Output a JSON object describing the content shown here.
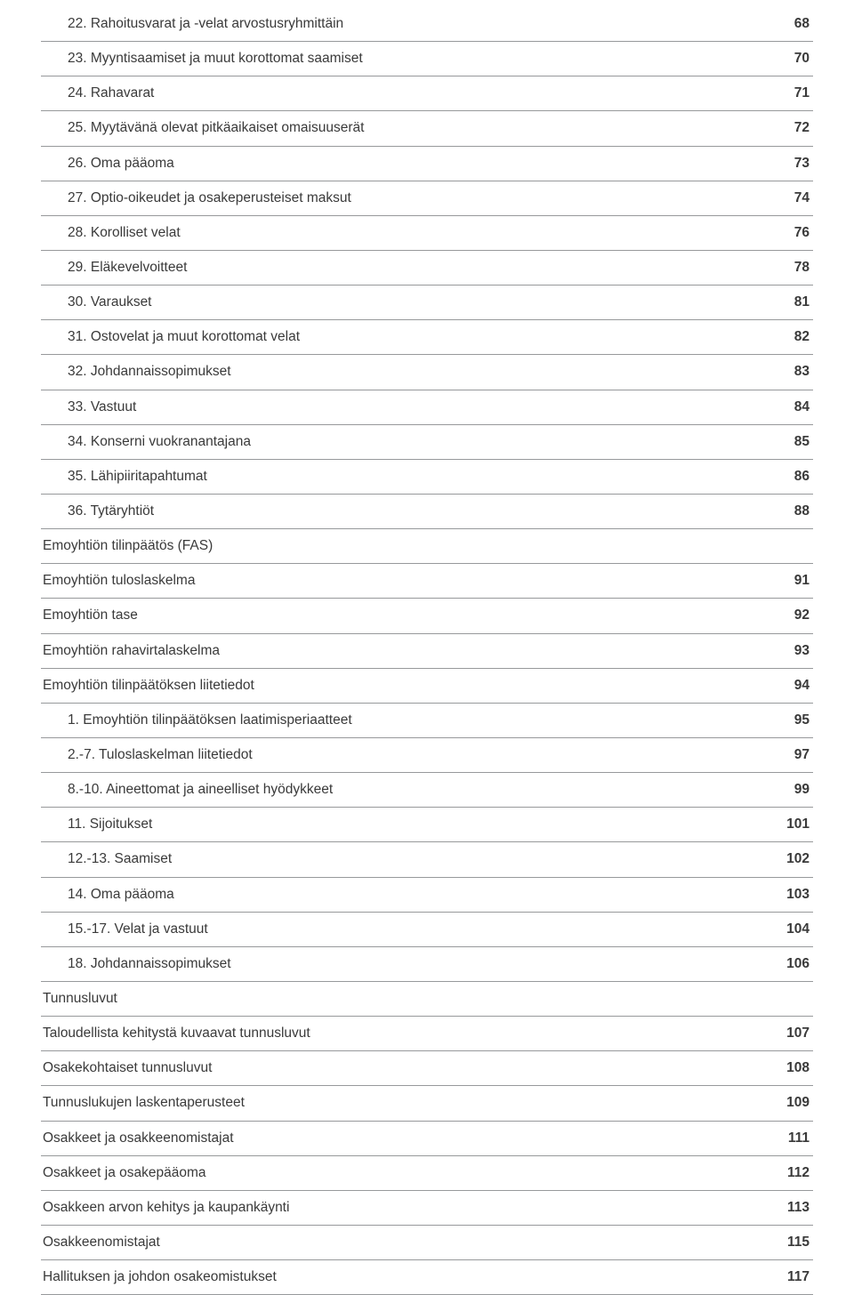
{
  "colors": {
    "text": "#3a3a3a",
    "divider": "#97999b",
    "background": "#ffffff"
  },
  "typography": {
    "font_family": "Arial",
    "font_size_pt": 12,
    "page_number_weight": "bold"
  },
  "toc": [
    {
      "title": "22. Rahoitusvarat ja -velat arvostusryhmittäin",
      "page": "68",
      "indent": 1
    },
    {
      "title": "23. Myyntisaamiset ja muut korottomat saamiset",
      "page": "70",
      "indent": 1
    },
    {
      "title": "24. Rahavarat",
      "page": "71",
      "indent": 1
    },
    {
      "title": "25. Myytävänä olevat pitkäaikaiset omaisuuserät",
      "page": "72",
      "indent": 1
    },
    {
      "title": "26. Oma pääoma",
      "page": "73",
      "indent": 1
    },
    {
      "title": "27. Optio-oikeudet ja osakeperusteiset maksut",
      "page": "74",
      "indent": 1
    },
    {
      "title": "28. Korolliset velat",
      "page": "76",
      "indent": 1
    },
    {
      "title": "29. Eläkevelvoitteet",
      "page": "78",
      "indent": 1
    },
    {
      "title": "30. Varaukset",
      "page": "81",
      "indent": 1
    },
    {
      "title": "31. Ostovelat ja muut korottomat velat",
      "page": "82",
      "indent": 1
    },
    {
      "title": "32. Johdannaissopimukset",
      "page": "83",
      "indent": 1
    },
    {
      "title": "33. Vastuut",
      "page": "84",
      "indent": 1
    },
    {
      "title": "34. Konserni vuokranantajana",
      "page": "85",
      "indent": 1
    },
    {
      "title": "35. Lähipiiritapahtumat",
      "page": "86",
      "indent": 1
    },
    {
      "title": "36. Tytäryhtiöt",
      "page": "88",
      "indent": 1
    },
    {
      "title": "Emoyhtiön tilinpäätös (FAS)",
      "page": "",
      "indent": 0,
      "header": true
    },
    {
      "title": "Emoyhtiön tuloslaskelma",
      "page": "91",
      "indent": 0
    },
    {
      "title": "Emoyhtiön tase",
      "page": "92",
      "indent": 0
    },
    {
      "title": "Emoyhtiön rahavirtalaskelma",
      "page": "93",
      "indent": 0
    },
    {
      "title": "Emoyhtiön tilinpäätöksen liitetiedot",
      "page": "94",
      "indent": 0
    },
    {
      "title": "1. Emoyhtiön tilinpäätöksen laatimisperiaatteet",
      "page": "95",
      "indent": 1
    },
    {
      "title": "2.-7. Tuloslaskelman liitetiedot",
      "page": "97",
      "indent": 1
    },
    {
      "title": "8.-10. Aineettomat ja aineelliset hyödykkeet",
      "page": "99",
      "indent": 1
    },
    {
      "title": "11. Sijoitukset",
      "page": "101",
      "indent": 1
    },
    {
      "title": "12.-13. Saamiset",
      "page": "102",
      "indent": 1
    },
    {
      "title": "14. Oma pääoma",
      "page": "103",
      "indent": 1
    },
    {
      "title": "15.-17. Velat ja vastuut",
      "page": "104",
      "indent": 1
    },
    {
      "title": "18. Johdannaissopimukset",
      "page": "106",
      "indent": 1
    },
    {
      "title": "Tunnusluvut",
      "page": "",
      "indent": 0,
      "header": true
    },
    {
      "title": "Taloudellista kehitystä kuvaavat tunnusluvut",
      "page": "107",
      "indent": 0
    },
    {
      "title": "Osakekohtaiset tunnusluvut",
      "page": "108",
      "indent": 0
    },
    {
      "title": "Tunnuslukujen laskentaperusteet",
      "page": "109",
      "indent": 0
    },
    {
      "title": "Osakkeet ja osakkeenomistajat",
      "page": "111",
      "indent": 0
    },
    {
      "title": "Osakkeet ja osakepääoma",
      "page": "112",
      "indent": 0
    },
    {
      "title": "Osakkeen arvon kehitys ja kaupankäynti",
      "page": "113",
      "indent": 0
    },
    {
      "title": "Osakkeenomistajat",
      "page": "115",
      "indent": 0
    },
    {
      "title": "Hallituksen ja johdon osakeomistukset",
      "page": "117",
      "indent": 0
    }
  ]
}
